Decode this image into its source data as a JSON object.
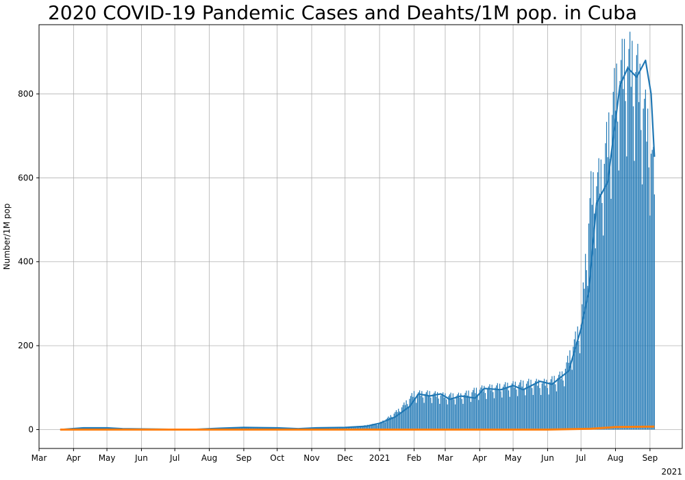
{
  "chart_data": {
    "type": "bar",
    "title": "2020 COVID-19 Pandemic Cases and Deahts/1M pop. in Cuba",
    "xlabel": "",
    "ylabel": "Number/1M pop",
    "x_offset_label": "2021",
    "xlim": [
      "2020-03-01",
      "2021-09-30"
    ],
    "ylim": [
      -45,
      965
    ],
    "grid": true,
    "x_ticks": [
      {
        "date": "2020-03-01",
        "label": "Mar"
      },
      {
        "date": "2020-04-01",
        "label": "Apr"
      },
      {
        "date": "2020-05-01",
        "label": "May"
      },
      {
        "date": "2020-06-01",
        "label": "Jun"
      },
      {
        "date": "2020-07-01",
        "label": "Jul"
      },
      {
        "date": "2020-08-01",
        "label": "Aug"
      },
      {
        "date": "2020-09-01",
        "label": "Sep"
      },
      {
        "date": "2020-10-01",
        "label": "Oct"
      },
      {
        "date": "2020-11-01",
        "label": "Nov"
      },
      {
        "date": "2020-12-01",
        "label": "Dec"
      },
      {
        "date": "2021-01-01",
        "label": "2021"
      },
      {
        "date": "2021-02-01",
        "label": "Feb"
      },
      {
        "date": "2021-03-01",
        "label": "Mar"
      },
      {
        "date": "2021-04-01",
        "label": "Apr"
      },
      {
        "date": "2021-05-01",
        "label": "May"
      },
      {
        "date": "2021-06-01",
        "label": "Jun"
      },
      {
        "date": "2021-07-01",
        "label": "Jul"
      },
      {
        "date": "2021-08-01",
        "label": "Aug"
      },
      {
        "date": "2021-09-01",
        "label": "Sep"
      }
    ],
    "y_ticks": [
      0,
      200,
      400,
      600,
      800
    ],
    "series": [
      {
        "role": "daily-cases-bars",
        "color": "#1f77b4",
        "points": [
          [
            "2020-03-20",
            0
          ],
          [
            "2020-04-01",
            2
          ],
          [
            "2020-04-15",
            4
          ],
          [
            "2020-05-01",
            3
          ],
          [
            "2020-05-15",
            2
          ],
          [
            "2020-06-01",
            1
          ],
          [
            "2020-07-01",
            0
          ],
          [
            "2020-07-25",
            0
          ],
          [
            "2020-08-10",
            4
          ],
          [
            "2020-09-01",
            5
          ],
          [
            "2020-09-20",
            5
          ],
          [
            "2020-10-01",
            4
          ],
          [
            "2020-10-20",
            3
          ],
          [
            "2020-11-01",
            4
          ],
          [
            "2020-11-20",
            5
          ],
          [
            "2020-12-01",
            6
          ],
          [
            "2020-12-15",
            8
          ],
          [
            "2021-01-01",
            15
          ],
          [
            "2021-01-10",
            30
          ],
          [
            "2021-01-20",
            50
          ],
          [
            "2021-02-01",
            85
          ],
          [
            "2021-02-15",
            85
          ],
          [
            "2021-03-01",
            80
          ],
          [
            "2021-03-15",
            80
          ],
          [
            "2021-04-01",
            95
          ],
          [
            "2021-04-15",
            100
          ],
          [
            "2021-05-01",
            105
          ],
          [
            "2021-05-15",
            110
          ],
          [
            "2021-06-01",
            110
          ],
          [
            "2021-06-15",
            130
          ],
          [
            "2021-07-01",
            250
          ],
          [
            "2021-07-10",
            560
          ],
          [
            "2021-07-20",
            600
          ],
          [
            "2021-08-01",
            800
          ],
          [
            "2021-08-10",
            870
          ],
          [
            "2021-08-20",
            850
          ],
          [
            "2021-09-01",
            680
          ],
          [
            "2021-09-05",
            590
          ]
        ]
      },
      {
        "role": "cases-7day-average",
        "color": "#1f77b4",
        "points": [
          [
            "2020-03-20",
            0
          ],
          [
            "2020-04-10",
            4
          ],
          [
            "2020-05-01",
            4
          ],
          [
            "2020-05-15",
            2
          ],
          [
            "2020-06-15",
            1
          ],
          [
            "2020-07-15",
            0
          ],
          [
            "2020-08-10",
            3
          ],
          [
            "2020-09-01",
            5
          ],
          [
            "2020-10-01",
            4
          ],
          [
            "2020-10-20",
            2
          ],
          [
            "2020-11-05",
            4
          ],
          [
            "2020-12-01",
            5
          ],
          [
            "2020-12-20",
            8
          ],
          [
            "2021-01-01",
            15
          ],
          [
            "2021-01-15",
            30
          ],
          [
            "2021-01-28",
            55
          ],
          [
            "2021-02-05",
            85
          ],
          [
            "2021-02-15",
            80
          ],
          [
            "2021-02-25",
            85
          ],
          [
            "2021-03-05",
            72
          ],
          [
            "2021-03-15",
            80
          ],
          [
            "2021-03-28",
            75
          ],
          [
            "2021-04-05",
            98
          ],
          [
            "2021-04-20",
            95
          ],
          [
            "2021-05-01",
            105
          ],
          [
            "2021-05-10",
            95
          ],
          [
            "2021-05-25",
            115
          ],
          [
            "2021-06-05",
            108
          ],
          [
            "2021-06-20",
            140
          ],
          [
            "2021-07-01",
            240
          ],
          [
            "2021-07-08",
            330
          ],
          [
            "2021-07-15",
            540
          ],
          [
            "2021-07-25",
            590
          ],
          [
            "2021-08-05",
            820
          ],
          [
            "2021-08-12",
            862
          ],
          [
            "2021-08-20",
            840
          ],
          [
            "2021-08-28",
            880
          ],
          [
            "2021-09-02",
            800
          ],
          [
            "2021-09-05",
            650
          ]
        ]
      },
      {
        "role": "daily-deaths",
        "color": "#ff7f0e",
        "points": [
          [
            "2020-03-20",
            0
          ],
          [
            "2021-06-01",
            0
          ],
          [
            "2021-07-10",
            2
          ],
          [
            "2021-08-01",
            6
          ],
          [
            "2021-09-05",
            7
          ]
        ]
      }
    ]
  }
}
